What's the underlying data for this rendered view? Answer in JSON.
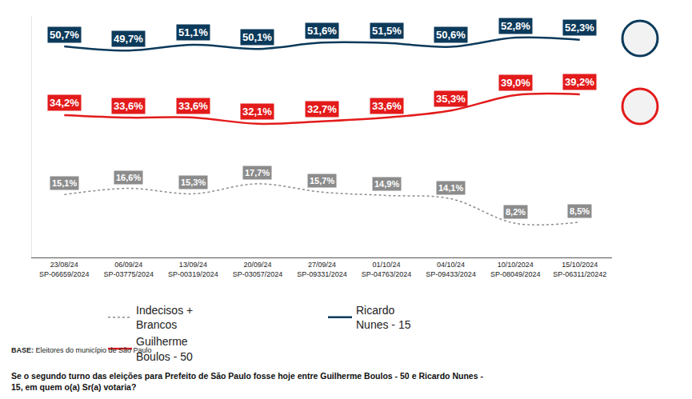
{
  "chart_data": {
    "type": "line",
    "categories": [
      "23/08/24\nSP-06659/2024",
      "06/09/24\nSP-03775/2024",
      "13/09/24\nSP-00319/2024",
      "20/09/24\nSP-03057/2024",
      "27/09/24\nSP-09331/2024",
      "01/10/24\nSP-04763/2024",
      "04/10/24\nSP-09433/2024",
      "10/10/2024\nSP-08049/2024",
      "15/10/2024\nSP-06311/20242"
    ],
    "series": [
      {
        "name": "Indecisos +\nBrancos",
        "color": "#8c8c8c",
        "line_style": "dotted",
        "values": [
          15.1,
          16.6,
          15.3,
          17.7,
          15.7,
          14.9,
          14.1,
          8.2,
          8.5
        ],
        "value_labels": [
          "15,1%",
          "16,6%",
          "15,3%",
          "17,7%",
          "15,7%",
          "14,9%",
          "14,1%",
          "8,2%",
          "8,5%"
        ]
      },
      {
        "name": "Ricardo\nNunes - 15",
        "color": "#0c3a5b",
        "line_style": "solid",
        "values": [
          50.7,
          49.7,
          51.1,
          50.1,
          51.6,
          51.5,
          50.6,
          52.8,
          52.3
        ],
        "value_labels": [
          "50,7%",
          "49,7%",
          "51,1%",
          "50,1%",
          "51,6%",
          "51,5%",
          "50,6%",
          "52,8%",
          "52,3%"
        ]
      },
      {
        "name": "Guilherme\nBoulos - 50",
        "color": "#e31b1b",
        "line_style": "solid",
        "values": [
          34.2,
          33.6,
          33.6,
          32.1,
          32.7,
          33.6,
          35.3,
          39.0,
          39.2
        ],
        "value_labels": [
          "34,2%",
          "33,6%",
          "33,6%",
          "32,1%",
          "32,7%",
          "33,6%",
          "35,3%",
          "39,0%",
          "39,2%"
        ]
      }
    ],
    "ylim": [
      0,
      58
    ],
    "tick_labels": "x",
    "grid": false,
    "data_labels": true,
    "legend": "bottom",
    "base_label": "BASE:",
    "base_text": "Eleitores do município de São Paulo",
    "question": "Se o segundo turno das eleições para Prefeito de São Paulo fosse hoje entre Guilherme Boulos - 50 e Ricardo Nunes - 15, em quem o(a) Sr(a) votaria?"
  }
}
